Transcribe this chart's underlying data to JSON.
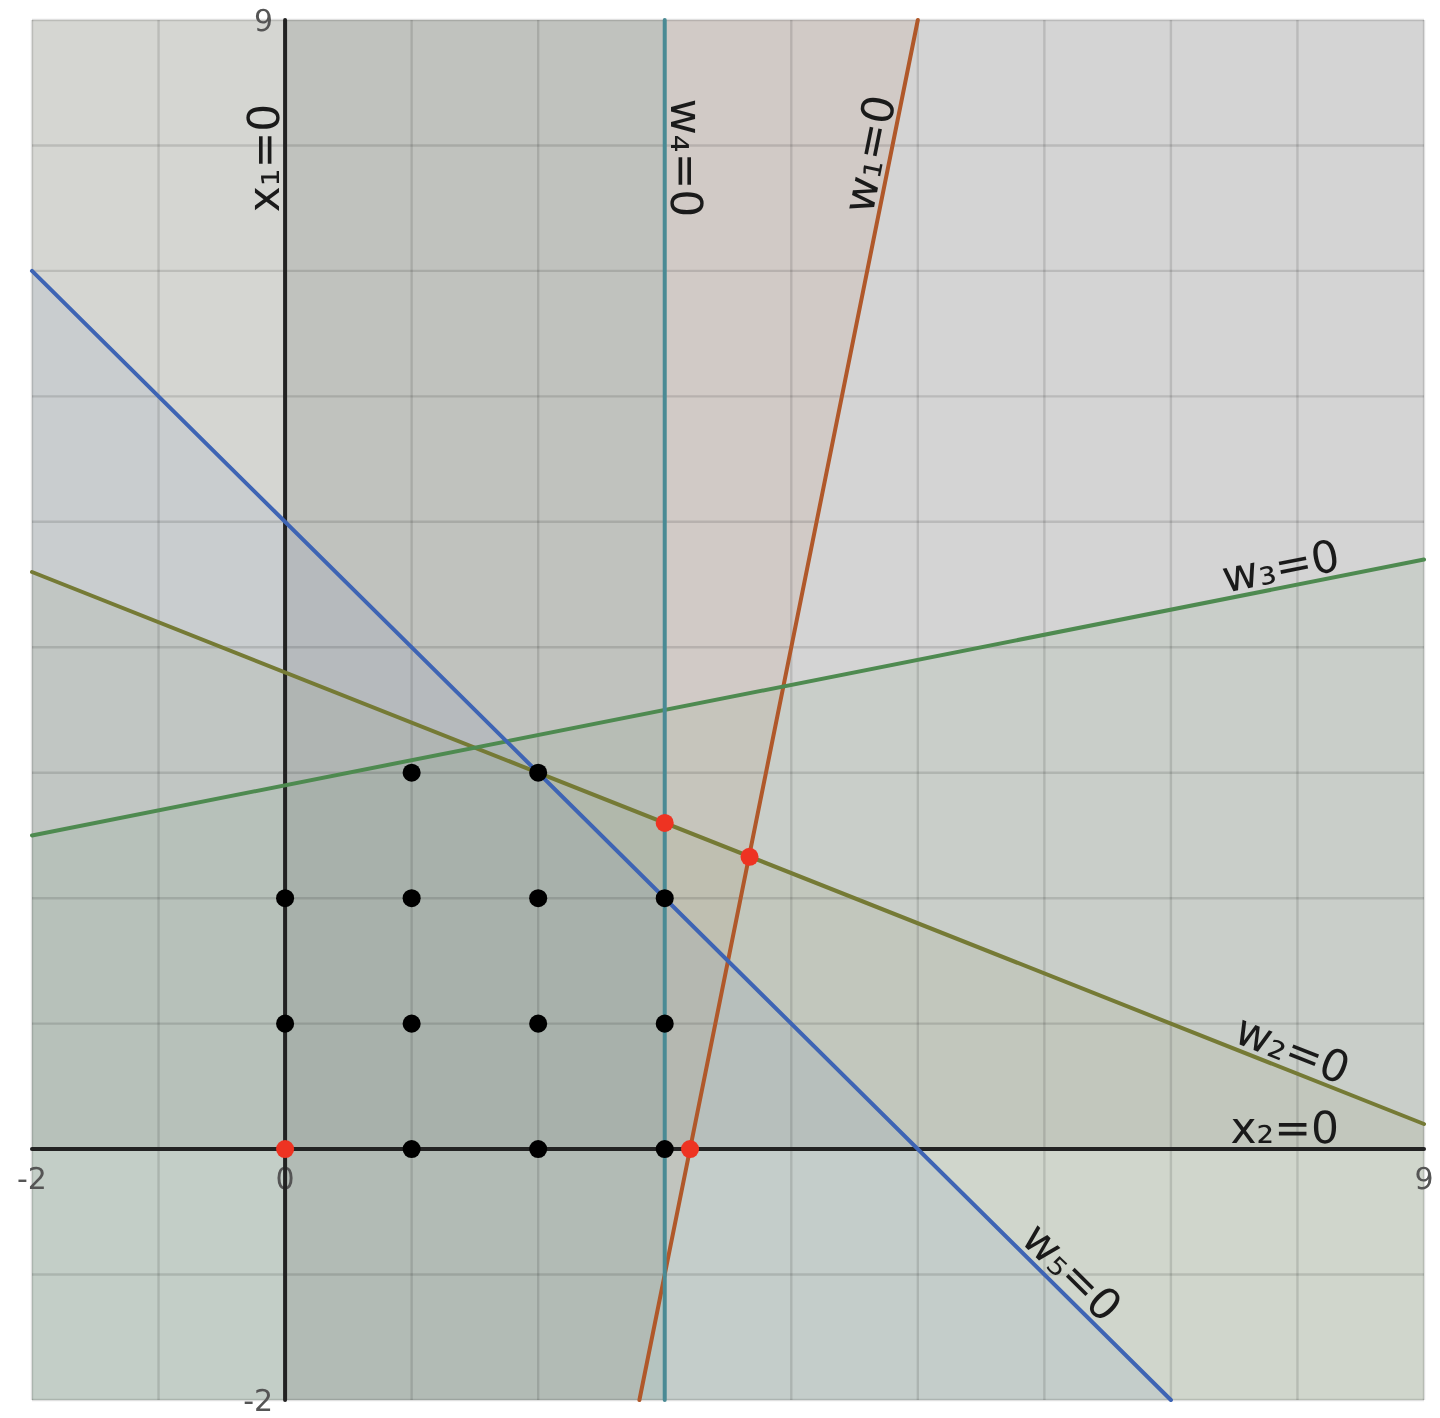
{
  "chart_data": {
    "type": "line",
    "xlim": [
      -2,
      9
    ],
    "ylim": [
      -2,
      9
    ],
    "xticks": [
      -2,
      {
        "value": -1,
        "label": null
      },
      0,
      {
        "value": 1,
        "label": null
      },
      {
        "value": 2,
        "label": null
      },
      {
        "value": 3,
        "label": null
      },
      {
        "value": 4,
        "label": null
      },
      {
        "value": 5,
        "label": null
      },
      {
        "value": 6,
        "label": null
      },
      {
        "value": 7,
        "label": null
      },
      {
        "value": 8,
        "label": null
      },
      9
    ],
    "yticks": [
      -2,
      {
        "value": -1,
        "label": null
      },
      {
        "value": 0,
        "label": null
      },
      {
        "value": 1,
        "label": null
      },
      {
        "value": 2,
        "label": null
      },
      {
        "value": 3,
        "label": null
      },
      {
        "value": 4,
        "label": null
      },
      {
        "value": 5,
        "label": null
      },
      {
        "value": 6,
        "label": null
      },
      {
        "value": 7,
        "label": null
      },
      {
        "value": 8,
        "label": null
      },
      9
    ],
    "grid": true,
    "bands": [
      {
        "axis": "x",
        "from": 0,
        "to": 9,
        "color": "#000000"
      },
      {
        "axis": "y",
        "from": 0,
        "to": 9,
        "color": "#404040"
      },
      {
        "axis": "x",
        "from": -2,
        "to": 3,
        "color": "#2a847c"
      }
    ],
    "series": [
      {
        "name": "x₁=0",
        "color": "#222222",
        "x": [
          0,
          0
        ],
        "values": [
          -2,
          9
        ]
      },
      {
        "name": "x₂=0",
        "color": "#222222",
        "x": [
          -2,
          9
        ],
        "values": [
          0,
          0
        ]
      },
      {
        "name": "w₁=0",
        "color": "#b0582a",
        "x": [
          -2,
          2.8,
          5
        ],
        "values": [
          null,
          -2,
          9
        ],
        "lower": [
          -2,
          -2,
          9
        ],
        "upper": [
          9,
          9,
          9
        ]
      },
      {
        "name": "w₂=0",
        "color": "#757a35",
        "x": [
          -2,
          9
        ],
        "values": [
          4.6,
          0.2
        ],
        "lower": [
          -2,
          -2
        ],
        "upper": [
          4.6,
          0.2
        ]
      },
      {
        "name": "w₃=0",
        "color": "#4e8a50",
        "x": [
          -2,
          9
        ],
        "values": [
          2.5,
          4.7
        ],
        "lower": [
          -2,
          -2
        ],
        "upper": [
          2.5,
          4.7
        ]
      },
      {
        "name": "w₄=0",
        "color": "#4a8a94",
        "x": [
          3,
          3
        ],
        "values": [
          9,
          -2
        ]
      },
      {
        "name": "w₅=0",
        "color": "#3e64b4",
        "x": [
          -2,
          7
        ],
        "values": [
          7,
          -2
        ],
        "lower": [
          -2,
          -2
        ],
        "upper": [
          7,
          -2
        ]
      },
      {
        "type": "scatter",
        "color": "#000000",
        "marker": "circle",
        "x": [
          1,
          2,
          0,
          1,
          2,
          3,
          0,
          1,
          2,
          3,
          1,
          2,
          3
        ],
        "values": [
          3,
          3,
          2,
          2,
          2,
          2,
          1,
          1,
          1,
          1,
          0,
          0,
          0
        ]
      },
      {
        "type": "scatter",
        "color": "#ee3322",
        "marker": "circle",
        "x": [
          0,
          3.2,
          3,
          3.67
        ],
        "values": [
          0,
          0,
          2.6,
          2.33
        ]
      }
    ]
  }
}
